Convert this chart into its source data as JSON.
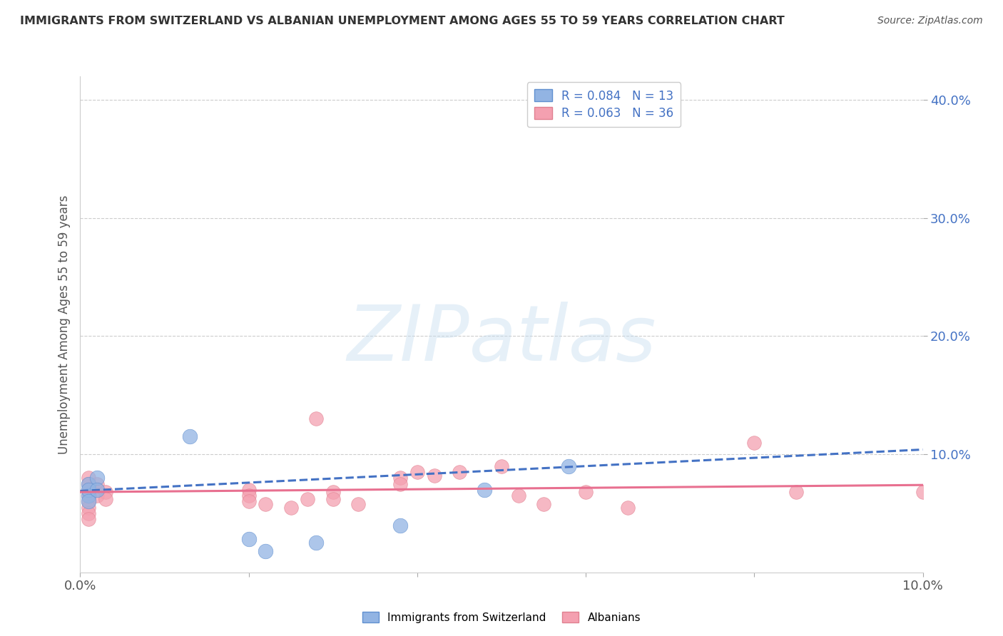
{
  "title": "IMMIGRANTS FROM SWITZERLAND VS ALBANIAN UNEMPLOYMENT AMONG AGES 55 TO 59 YEARS CORRELATION CHART",
  "source": "Source: ZipAtlas.com",
  "xlabel": "",
  "ylabel": "Unemployment Among Ages 55 to 59 years",
  "xlim": [
    0.0,
    0.1
  ],
  "ylim": [
    0.0,
    0.42
  ],
  "yticks": [
    0.1,
    0.2,
    0.3,
    0.4
  ],
  "ytick_labels": [
    "10.0%",
    "20.0%",
    "30.0%",
    "40.0%"
  ],
  "xticks": [
    0.0,
    0.02,
    0.04,
    0.06,
    0.08,
    0.1
  ],
  "xtick_labels": [
    "0.0%",
    "",
    "",
    "",
    "",
    "10.0%"
  ],
  "switzerland_color": "#92b4e3",
  "albanian_color": "#f4a0b0",
  "switzerland_line_color": "#4472c4",
  "albanian_line_color": "#e87090",
  "switzerland_R": 0.084,
  "switzerland_N": 13,
  "albanian_R": 0.063,
  "albanian_N": 36,
  "watermark": "ZIPatlas",
  "switzerland_points": [
    [
      0.001,
      0.075
    ],
    [
      0.001,
      0.065
    ],
    [
      0.001,
      0.07
    ],
    [
      0.001,
      0.06
    ],
    [
      0.002,
      0.08
    ],
    [
      0.002,
      0.07
    ],
    [
      0.013,
      0.115
    ],
    [
      0.02,
      0.028
    ],
    [
      0.022,
      0.018
    ],
    [
      0.028,
      0.025
    ],
    [
      0.038,
      0.04
    ],
    [
      0.048,
      0.07
    ],
    [
      0.058,
      0.09
    ]
  ],
  "albanian_points": [
    [
      0.001,
      0.08
    ],
    [
      0.001,
      0.075
    ],
    [
      0.001,
      0.07
    ],
    [
      0.001,
      0.065
    ],
    [
      0.001,
      0.06
    ],
    [
      0.001,
      0.055
    ],
    [
      0.001,
      0.05
    ],
    [
      0.001,
      0.045
    ],
    [
      0.002,
      0.075
    ],
    [
      0.002,
      0.07
    ],
    [
      0.002,
      0.065
    ],
    [
      0.003,
      0.068
    ],
    [
      0.003,
      0.062
    ],
    [
      0.02,
      0.07
    ],
    [
      0.02,
      0.065
    ],
    [
      0.02,
      0.06
    ],
    [
      0.022,
      0.058
    ],
    [
      0.025,
      0.055
    ],
    [
      0.027,
      0.062
    ],
    [
      0.028,
      0.13
    ],
    [
      0.03,
      0.068
    ],
    [
      0.03,
      0.062
    ],
    [
      0.033,
      0.058
    ],
    [
      0.038,
      0.08
    ],
    [
      0.038,
      0.075
    ],
    [
      0.04,
      0.085
    ],
    [
      0.042,
      0.082
    ],
    [
      0.045,
      0.085
    ],
    [
      0.05,
      0.09
    ],
    [
      0.052,
      0.065
    ],
    [
      0.055,
      0.058
    ],
    [
      0.06,
      0.068
    ],
    [
      0.065,
      0.055
    ],
    [
      0.08,
      0.11
    ],
    [
      0.085,
      0.068
    ],
    [
      0.1,
      0.068
    ]
  ],
  "swiss_trend_x": [
    0.0,
    0.1
  ],
  "swiss_trend_y": [
    0.069,
    0.104
  ],
  "alb_trend_x": [
    0.0,
    0.1
  ],
  "alb_trend_y": [
    0.068,
    0.074
  ],
  "background_color": "#ffffff",
  "grid_color": "#cccccc",
  "title_color": "#333333",
  "axis_label_color": "#555555"
}
